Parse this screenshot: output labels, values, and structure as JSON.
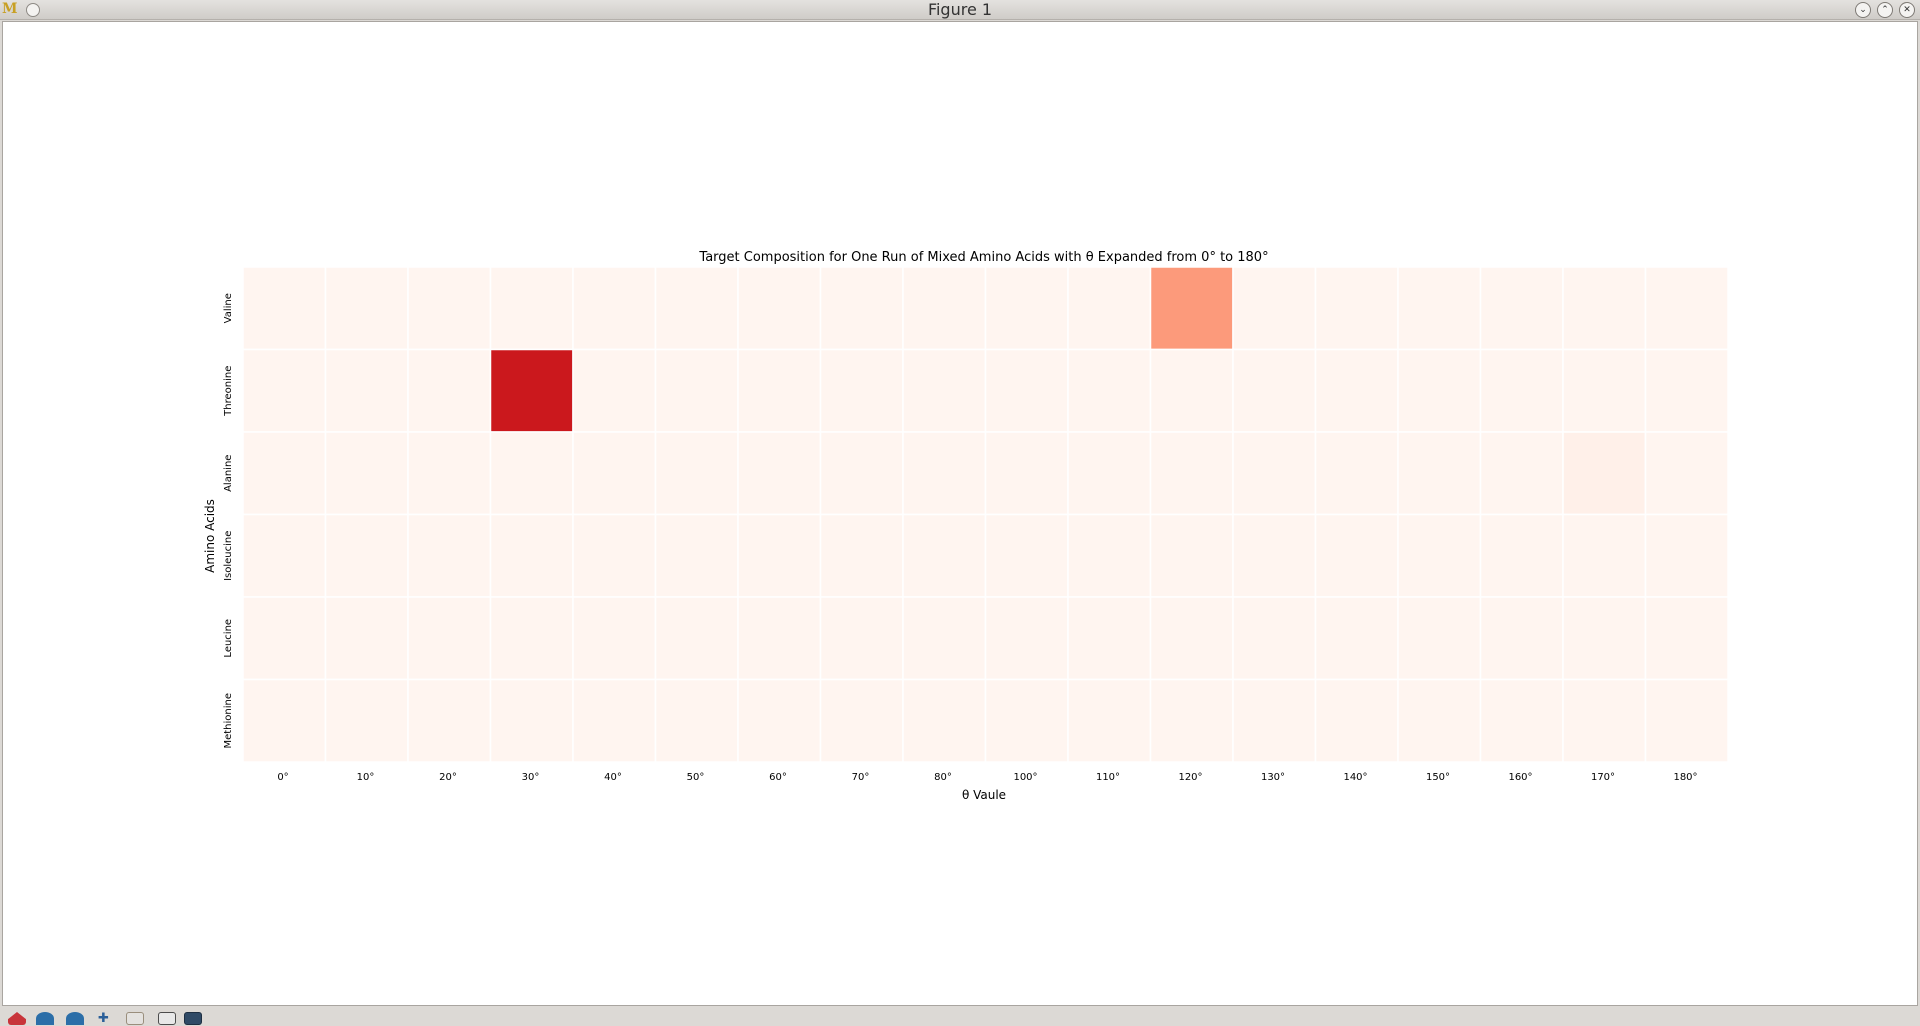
{
  "window": {
    "title": "Figure 1",
    "controls": [
      "minimize-icon",
      "maximize-icon",
      "close-icon"
    ]
  },
  "toolbar": {
    "buttons": [
      "home-icon",
      "back-icon",
      "forward-icon",
      "pan-icon",
      "zoom-icon",
      "configure-icon",
      "save-icon"
    ]
  },
  "chart_data": {
    "type": "heatmap",
    "title": "Target Composition for One Run of Mixed Amino Acids with θ Expanded from 0° to 180°",
    "xlabel": "θ Vaule",
    "ylabel": "Amino Acids",
    "x_categories": [
      "0°",
      "10°",
      "20°",
      "30°",
      "40°",
      "50°",
      "60°",
      "70°",
      "80°",
      "100°",
      "110°",
      "120°",
      "130°",
      "140°",
      "150°",
      "160°",
      "170°",
      "180°"
    ],
    "y_categories": [
      "Valine",
      "Threonine",
      "Alanine",
      "Isoleucine",
      "Leucine",
      "Methionine"
    ],
    "colormap": "Reds",
    "value_range": [
      0,
      1
    ],
    "values": [
      [
        0,
        0,
        0,
        0,
        0,
        0,
        0,
        0,
        0,
        0,
        0,
        0.35,
        0,
        0,
        0,
        0,
        0,
        0
      ],
      [
        0,
        0,
        0,
        0.75,
        0,
        0,
        0,
        0,
        0,
        0,
        0,
        0,
        0,
        0,
        0,
        0,
        0,
        0
      ],
      [
        0,
        0,
        0,
        0,
        0,
        0,
        0,
        0,
        0,
        0,
        0,
        0,
        0,
        0,
        0,
        0,
        0.03,
        0
      ],
      [
        0,
        0,
        0,
        0,
        0,
        0,
        0,
        0,
        0,
        0,
        0,
        0,
        0,
        0,
        0,
        0,
        0,
        0
      ],
      [
        0,
        0,
        0,
        0,
        0,
        0,
        0,
        0,
        0,
        0,
        0,
        0,
        0,
        0,
        0,
        0,
        0,
        0
      ],
      [
        0,
        0,
        0,
        0,
        0,
        0,
        0,
        0,
        0,
        0,
        0,
        0,
        0,
        0,
        0,
        0,
        0,
        0
      ]
    ],
    "grid": true
  }
}
